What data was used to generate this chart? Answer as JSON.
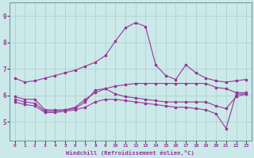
{
  "background_color": "#cbe9e9",
  "grid_color": "#b0d0d0",
  "line_color": "#993399",
  "xlim": [
    -0.5,
    23.5
  ],
  "ylim": [
    4.3,
    9.5
  ],
  "xlabel": "Windchill (Refroidissement éolien,°C)",
  "xticks": [
    0,
    1,
    2,
    3,
    4,
    5,
    6,
    7,
    8,
    9,
    10,
    11,
    12,
    13,
    14,
    15,
    16,
    17,
    18,
    19,
    20,
    21,
    22,
    23
  ],
  "yticks": [
    5,
    6,
    7,
    8,
    9
  ],
  "series": [
    {
      "x": [
        0,
        1,
        2,
        3,
        4,
        5,
        6,
        7,
        8,
        9,
        10,
        11,
        12,
        13,
        14,
        15,
        16,
        17,
        18,
        19,
        20,
        21,
        22,
        23
      ],
      "y": [
        6.65,
        6.5,
        6.55,
        6.65,
        6.75,
        6.85,
        6.95,
        7.1,
        7.25,
        7.5,
        8.05,
        8.55,
        8.75,
        8.6,
        7.15,
        6.75,
        6.6,
        7.15,
        6.85,
        6.65,
        6.55,
        6.5,
        6.55,
        6.6
      ]
    },
    {
      "x": [
        0,
        1,
        2,
        3,
        4,
        5,
        6,
        7,
        8,
        9,
        10,
        11,
        12,
        13,
        14,
        15,
        16,
        17,
        18,
        19,
        20,
        21,
        22,
        23
      ],
      "y": [
        5.95,
        5.85,
        5.85,
        5.45,
        5.45,
        5.45,
        5.55,
        5.85,
        6.1,
        6.25,
        6.35,
        6.4,
        6.45,
        6.45,
        6.45,
        6.45,
        6.45,
        6.45,
        6.45,
        6.45,
        6.3,
        6.25,
        6.1,
        6.1
      ]
    },
    {
      "x": [
        0,
        1,
        2,
        3,
        4,
        5,
        6,
        7,
        8,
        9,
        10,
        11,
        12,
        13,
        14,
        15,
        16,
        17,
        18,
        19,
        20,
        21,
        22,
        23
      ],
      "y": [
        5.85,
        5.75,
        5.7,
        5.4,
        5.4,
        5.45,
        5.5,
        5.75,
        6.2,
        6.25,
        6.05,
        5.95,
        5.9,
        5.85,
        5.8,
        5.75,
        5.75,
        5.75,
        5.75,
        5.75,
        5.6,
        5.5,
        5.95,
        6.05
      ]
    },
    {
      "x": [
        0,
        1,
        2,
        3,
        4,
        5,
        6,
        7,
        8,
        9,
        10,
        11,
        12,
        13,
        14,
        15,
        16,
        17,
        18,
        19,
        20,
        21,
        22,
        23
      ],
      "y": [
        5.75,
        5.65,
        5.6,
        5.35,
        5.35,
        5.4,
        5.45,
        5.55,
        5.75,
        5.85,
        5.85,
        5.8,
        5.75,
        5.7,
        5.65,
        5.6,
        5.55,
        5.55,
        5.5,
        5.45,
        5.3,
        4.75,
        6.05,
        6.05
      ]
    }
  ]
}
